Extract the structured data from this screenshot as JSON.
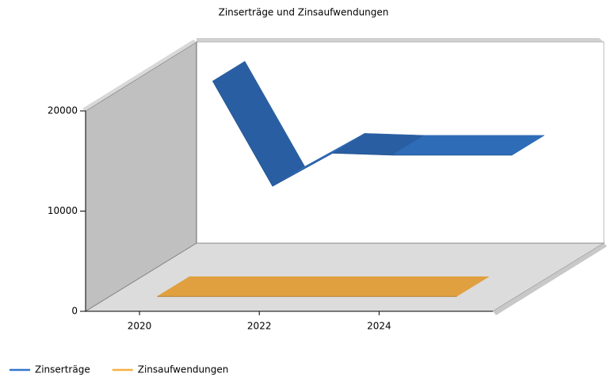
{
  "chart_data": {
    "type": "line3d",
    "title": "Zinserträge und Zinsaufwendungen",
    "x": [
      2020,
      2021,
      2022,
      2023,
      2024,
      2025
    ],
    "series": [
      {
        "name": "Zinserträge",
        "color": "#2f6cb8",
        "values": [
          18500,
          8000,
          11300,
          11100,
          11100,
          11100
        ]
      },
      {
        "name": "Zinsaufwendungen",
        "color": "#e0a040",
        "values": [
          400,
          400,
          400,
          400,
          400,
          400
        ]
      }
    ],
    "xlim": [
      2019.1,
      2025.9
    ],
    "xticks": [
      2020,
      2022,
      2024
    ],
    "ylim": [
      0,
      20000
    ],
    "yticks": [
      0,
      10000,
      20000
    ],
    "legend": "bottom-left"
  }
}
